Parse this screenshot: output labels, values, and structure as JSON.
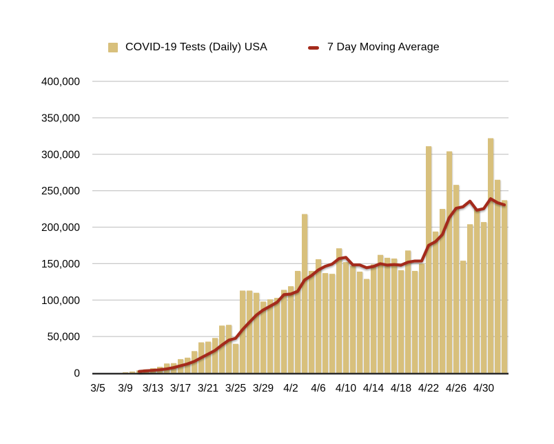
{
  "legend": {
    "tests_label": "COVID-19 Tests (Daily) USA",
    "ma_label": "7 Day Moving Average"
  },
  "chart_data": {
    "type": "bar",
    "title": "",
    "xlabel": "",
    "ylabel": "",
    "ylim": [
      0,
      400000
    ],
    "ytick_step": 50000,
    "ytick_labels": [
      "0",
      "50,000",
      "100,000",
      "150,000",
      "200,000",
      "250,000",
      "300,000",
      "350,000",
      "400,000"
    ],
    "xtick_labels": [
      "3/5",
      "3/9",
      "3/13",
      "3/17",
      "3/21",
      "3/25",
      "3/29",
      "4/2",
      "4/6",
      "4/10",
      "4/14",
      "4/18",
      "4/22",
      "4/26",
      "4/30"
    ],
    "grid": true,
    "legend_position": "top",
    "bar_color": "#D8C07C",
    "line_color": "#A42A1B",
    "grid_color": "#C8C8C8",
    "baseline_color": "#2A2A2A",
    "dates": [
      "3/9",
      "3/10",
      "3/11",
      "3/12",
      "3/13",
      "3/14",
      "3/15",
      "3/16",
      "3/17",
      "3/18",
      "3/19",
      "3/20",
      "3/21",
      "3/22",
      "3/23",
      "3/24",
      "3/25",
      "3/26",
      "3/27",
      "3/28",
      "3/29",
      "3/30",
      "3/31",
      "4/1",
      "4/2",
      "4/3",
      "4/4",
      "4/5",
      "4/6",
      "4/7",
      "4/8",
      "4/9",
      "4/10",
      "4/11",
      "4/12",
      "4/13",
      "4/14",
      "4/15",
      "4/16",
      "4/17",
      "4/18",
      "4/19",
      "4/20",
      "4/21",
      "4/22",
      "4/23",
      "4/24",
      "4/25",
      "4/26",
      "4/27",
      "4/28",
      "4/29",
      "4/30",
      "5/1",
      "5/2",
      "5/3"
    ],
    "series": [
      {
        "name": "COVID-19 Tests (Daily) USA",
        "kind": "bar",
        "values": [
          1000,
          2000,
          3500,
          5000,
          6500,
          8500,
          13000,
          13500,
          19000,
          21000,
          30000,
          42000,
          43000,
          48000,
          65000,
          66000,
          40000,
          113000,
          113000,
          110000,
          98000,
          101000,
          103000,
          114000,
          119000,
          140000,
          218000,
          140000,
          156000,
          137000,
          136000,
          171000,
          152000,
          147000,
          139000,
          129000,
          149000,
          162000,
          158000,
          157000,
          141000,
          168000,
          140000,
          150000,
          311000,
          194000,
          225000,
          304000,
          258000,
          154000,
          204000,
          225000,
          207000,
          322000,
          265000,
          237000
        ]
      },
      {
        "name": "7 Day Moving Average",
        "kind": "line",
        "draw_from_index": 2,
        "values": [
          1000,
          1500,
          2200,
          2900,
          3600,
          4400,
          5600,
          7400,
          9900,
          12400,
          15900,
          21000,
          25900,
          30900,
          38300,
          45000,
          47700,
          59600,
          69700,
          79300,
          86400,
          91600,
          96900,
          107400,
          108300,
          112100,
          127600,
          133600,
          141400,
          146300,
          149400,
          156900,
          158600,
          148400,
          148300,
          144400,
          146100,
          149900,
          148000,
          148700,
          147900,
          152000,
          153600,
          153700,
          175000,
          180100,
          189900,
          213100,
          226000,
          228000,
          235700,
          223400,
          225300,
          239100,
          233600,
          230600
        ]
      }
    ]
  }
}
